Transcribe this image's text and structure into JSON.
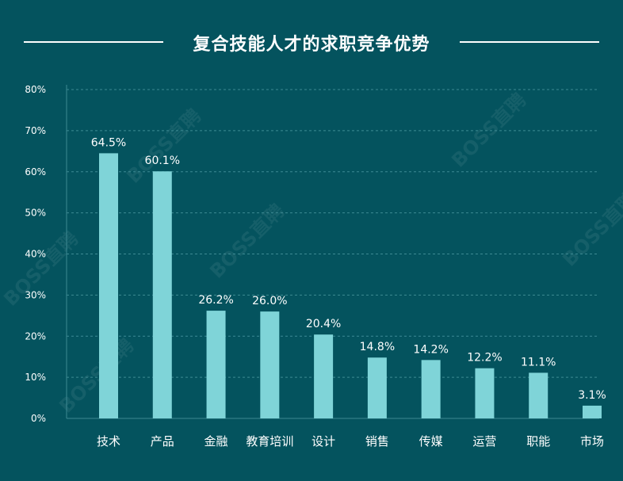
{
  "title": "复合技能人才的求职竞争优势",
  "watermark": "BOSS直聘",
  "colors": {
    "background": "#04535e",
    "bar": "#7fd4d8",
    "text": "#ffffff",
    "grid": "#3d8a93"
  },
  "chart_data": {
    "type": "bar",
    "title": "复合技能人才的求职竞争优势",
    "xlabel": "",
    "ylabel": "",
    "categories": [
      "技术",
      "产品",
      "金融",
      "教育培训",
      "设计",
      "销售",
      "传媒",
      "运营",
      "职能",
      "市场"
    ],
    "values": [
      64.5,
      60.1,
      26.2,
      26.0,
      20.4,
      14.8,
      14.2,
      12.2,
      11.1,
      3.1
    ],
    "value_labels": [
      "64.5%",
      "60.1%",
      "26.2%",
      "26.0%",
      "20.4%",
      "14.8%",
      "14.2%",
      "12.2%",
      "11.1%",
      "3.1%"
    ],
    "yticks": [
      0,
      10,
      20,
      30,
      40,
      50,
      60,
      70,
      80
    ],
    "ytick_labels": [
      "0%",
      "10%",
      "20%",
      "30%",
      "40%",
      "50%",
      "60%",
      "70%",
      "80%"
    ],
    "ylim": [
      0,
      80
    ],
    "grid": true,
    "legend": "none"
  }
}
